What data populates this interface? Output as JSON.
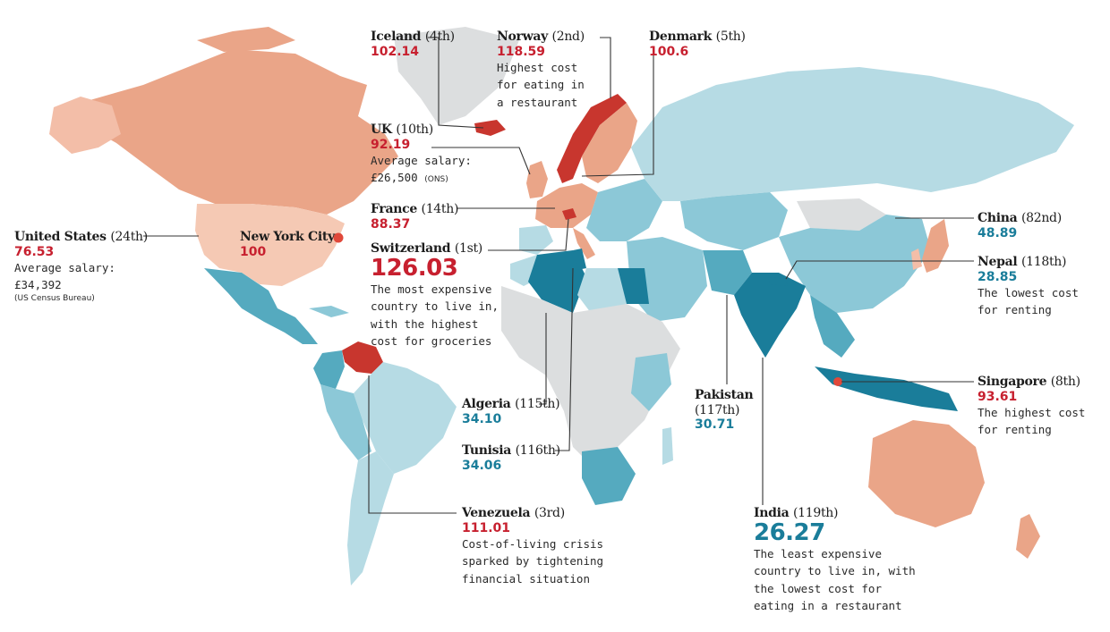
{
  "colors": {
    "highest": "#c8362e",
    "high": "#e88e71",
    "mid_high": "#f1b49c",
    "light_high": "#f5c9b4",
    "low_light": "#b6dbe4",
    "low_mid": "#8cc8d7",
    "low": "#55aabf",
    "lowest": "#1a7d9a",
    "no_data": "#dcdedf",
    "value_red": "#c7202f",
    "value_blue": "#1a7d9a",
    "leader": "#333333"
  },
  "labels": {
    "iceland": {
      "name": "Iceland",
      "rank": "(4th)",
      "value": "102.14"
    },
    "norway": {
      "name": "Norway",
      "rank": "(2nd)",
      "value": "118.59",
      "note": "Highest cost\nfor eating in\na restaurant"
    },
    "denmark": {
      "name": "Denmark",
      "rank": "(5th)",
      "value": "100.6"
    },
    "uk": {
      "name": "UK",
      "rank": "(10th)",
      "value": "92.19",
      "note": "Average salary:",
      "salary": "£26,500",
      "salary_src": "(ONS)"
    },
    "france": {
      "name": "France",
      "rank": "(14th)",
      "value": "88.37"
    },
    "switzerland": {
      "name": "Switzerland",
      "rank": "(1st)",
      "value": "126.03",
      "note": "The most expensive\ncountry to live in,\nwith the highest\ncost for groceries"
    },
    "us": {
      "name": "United States",
      "rank": "(24th)",
      "value": "76.53",
      "note": "Average salary:",
      "salary": "£34,392",
      "salary_src": "(US Census Bureau)"
    },
    "nyc": {
      "name": "New York City",
      "value": "100"
    },
    "china": {
      "name": "China",
      "rank": "(82nd)",
      "value": "48.89"
    },
    "nepal": {
      "name": "Nepal",
      "rank": "(118th)",
      "value": "28.85",
      "note": "The lowest cost\nfor renting"
    },
    "singapore": {
      "name": "Singapore",
      "rank": "(8th)",
      "value": "93.61",
      "note": "The highest cost\nfor renting"
    },
    "algeria": {
      "name": "Algeria",
      "rank": "(115th)",
      "value": "34.10"
    },
    "tunisia": {
      "name": "Tunisia",
      "rank": "(116th)",
      "value": "34.06"
    },
    "pakistan": {
      "name": "Pakistan",
      "rank": "(117th)",
      "value": "30.71"
    },
    "india": {
      "name": "India",
      "rank": "(119th)",
      "value": "26.27",
      "note": "The least expensive\ncountry to live in, with\nthe lowest cost for\neating in a restaurant"
    },
    "venezuela": {
      "name": "Venezuela",
      "rank": "(3rd)",
      "value": "111.01",
      "note": "Cost-of-living crisis\nsparked by tightening\nfinancial situation"
    }
  }
}
